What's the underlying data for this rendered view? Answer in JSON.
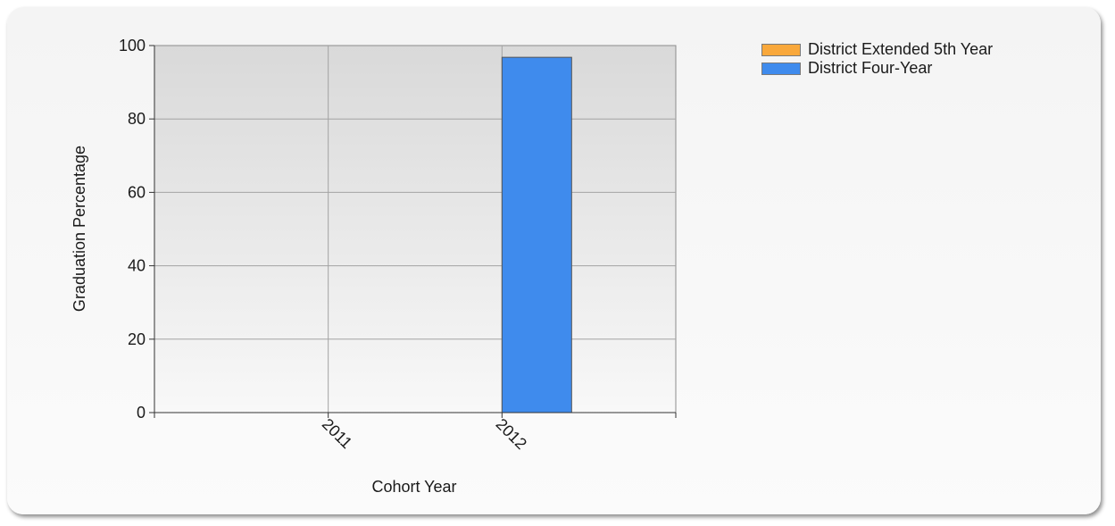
{
  "chart_data": {
    "type": "bar",
    "categories": [
      "2011",
      "2012"
    ],
    "series": [
      {
        "name": "District Extended 5th Year",
        "color": "#f9a83b",
        "values": [
          null,
          null
        ]
      },
      {
        "name": "District Four-Year",
        "color": "#3f8bed",
        "values": [
          null,
          96.8
        ]
      }
    ],
    "xlabel": "Cohort Year",
    "ylabel": "Graduation Percentage",
    "ylim": [
      0,
      100
    ],
    "yticks": [
      0,
      20,
      40,
      60,
      80,
      100
    ],
    "grid": true,
    "legend_position": "top-right"
  }
}
